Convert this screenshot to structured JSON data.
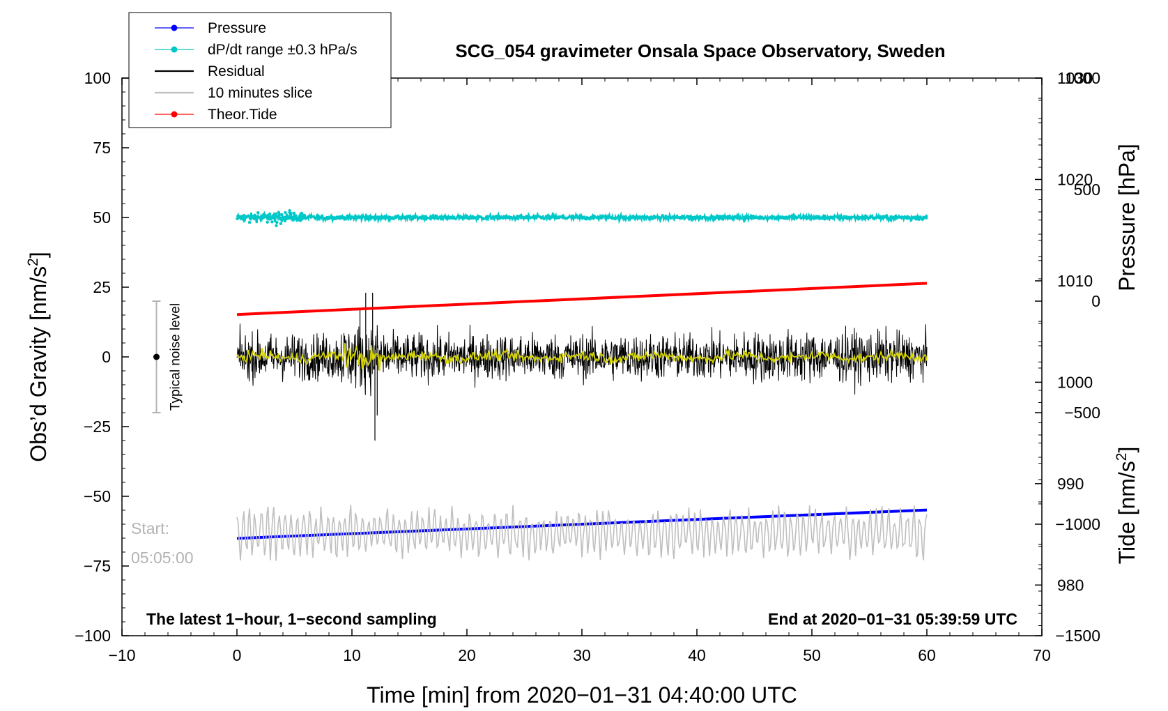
{
  "chart_data": {
    "type": "line",
    "title": "SCG_054 gravimeter Onsala Space Observatory, Sweden",
    "xlabel": "Time [min] from 2020−01−31 04:40:00 UTC",
    "ylabel_left": "Obs’d Gravity [nm/s",
    "ylabel_left_sup": "2",
    "ylabel_left_end": "]",
    "ylabel_right_pressure": "Pressure [hPa]",
    "ylabel_right_tide": "Tide [nm/s",
    "ylabel_right_tide_sup": "2",
    "ylabel_right_tide_end": "]",
    "xlim": [
      -10,
      70
    ],
    "ylim_left": [
      -100,
      100
    ],
    "pressure_range": [
      975,
      1030
    ],
    "tide_range": [
      -1500,
      1000
    ],
    "x_ticks": [
      "−10",
      "0",
      "10",
      "20",
      "30",
      "40",
      "50",
      "60",
      "70"
    ],
    "x_tick_values": [
      -10,
      0,
      10,
      20,
      30,
      40,
      50,
      60,
      70
    ],
    "y_left_ticks": [
      "100",
      "75",
      "50",
      "25",
      "0",
      "−25",
      "−50",
      "−75",
      "−100"
    ],
    "y_left_tick_values": [
      100,
      75,
      50,
      25,
      0,
      -25,
      -50,
      -75,
      -100
    ],
    "pressure_ticks": [
      "1030",
      "1020",
      "1010",
      "1000",
      "990",
      "980"
    ],
    "pressure_tick_values": [
      1030,
      1020,
      1010,
      1000,
      990,
      980
    ],
    "tide_ticks": [
      "1000",
      "500",
      "0",
      "−500",
      "−1000",
      "−1500"
    ],
    "tide_tick_values": [
      1000,
      500,
      0,
      -500,
      -1000,
      -1500
    ],
    "legend_position": "top-left",
    "legend": [
      {
        "label": "Pressure",
        "color": "#0000ff",
        "marker": true
      },
      {
        "label": "dP/dt range ±0.3 hPa/s",
        "color": "#00c8c8",
        "marker": true
      },
      {
        "label": "Residual",
        "color": "#000000",
        "marker": false
      },
      {
        "label": "10 minutes slice",
        "color": "#bfbfbf",
        "marker": false
      },
      {
        "label": "Theor.Tide",
        "color": "#ff0000",
        "marker": true
      }
    ],
    "series": {
      "pressure": {
        "name": "Pressure",
        "color": "#0000ff",
        "x": [
          0,
          60
        ],
        "values": [
          984.6,
          987.4
        ]
      },
      "dpdt": {
        "name": "dP/dt range ±0.3 hPa/s",
        "color": "#00c8c8",
        "level_gravity": 50,
        "amplitude": 0.7
      },
      "residual": {
        "name": "Residual",
        "color": "#000000",
        "level_gravity": 0,
        "amplitude": 9,
        "spikes": [
          {
            "x": 10.7,
            "value": 17
          },
          {
            "x": 11.2,
            "value": 23
          },
          {
            "x": 11.8,
            "value": 23
          },
          {
            "x": 12.0,
            "value": -30
          },
          {
            "x": 12.2,
            "value": -21
          }
        ]
      },
      "residual_smooth": {
        "color": "#d4d400",
        "level_gravity": 0
      },
      "slice": {
        "name": "10 minutes slice",
        "color": "#bfbfbf",
        "level_gravity": -63,
        "amplitude": 8
      },
      "tide": {
        "name": "Theor.Tide",
        "color": "#ff0000",
        "x": [
          0,
          60
        ],
        "values": [
          -60,
          80
        ]
      }
    },
    "noise_level": {
      "label": "Typical noise level",
      "x": -7,
      "center": 0,
      "half_range": 20
    },
    "start_label_line1": "Start:",
    "start_label_line2": "05:05:00",
    "bottom_left_note": "The latest 1−hour, 1−second sampling",
    "bottom_right_note": "End at 2020−01−31 05:39:59 UTC",
    "grid": false
  }
}
